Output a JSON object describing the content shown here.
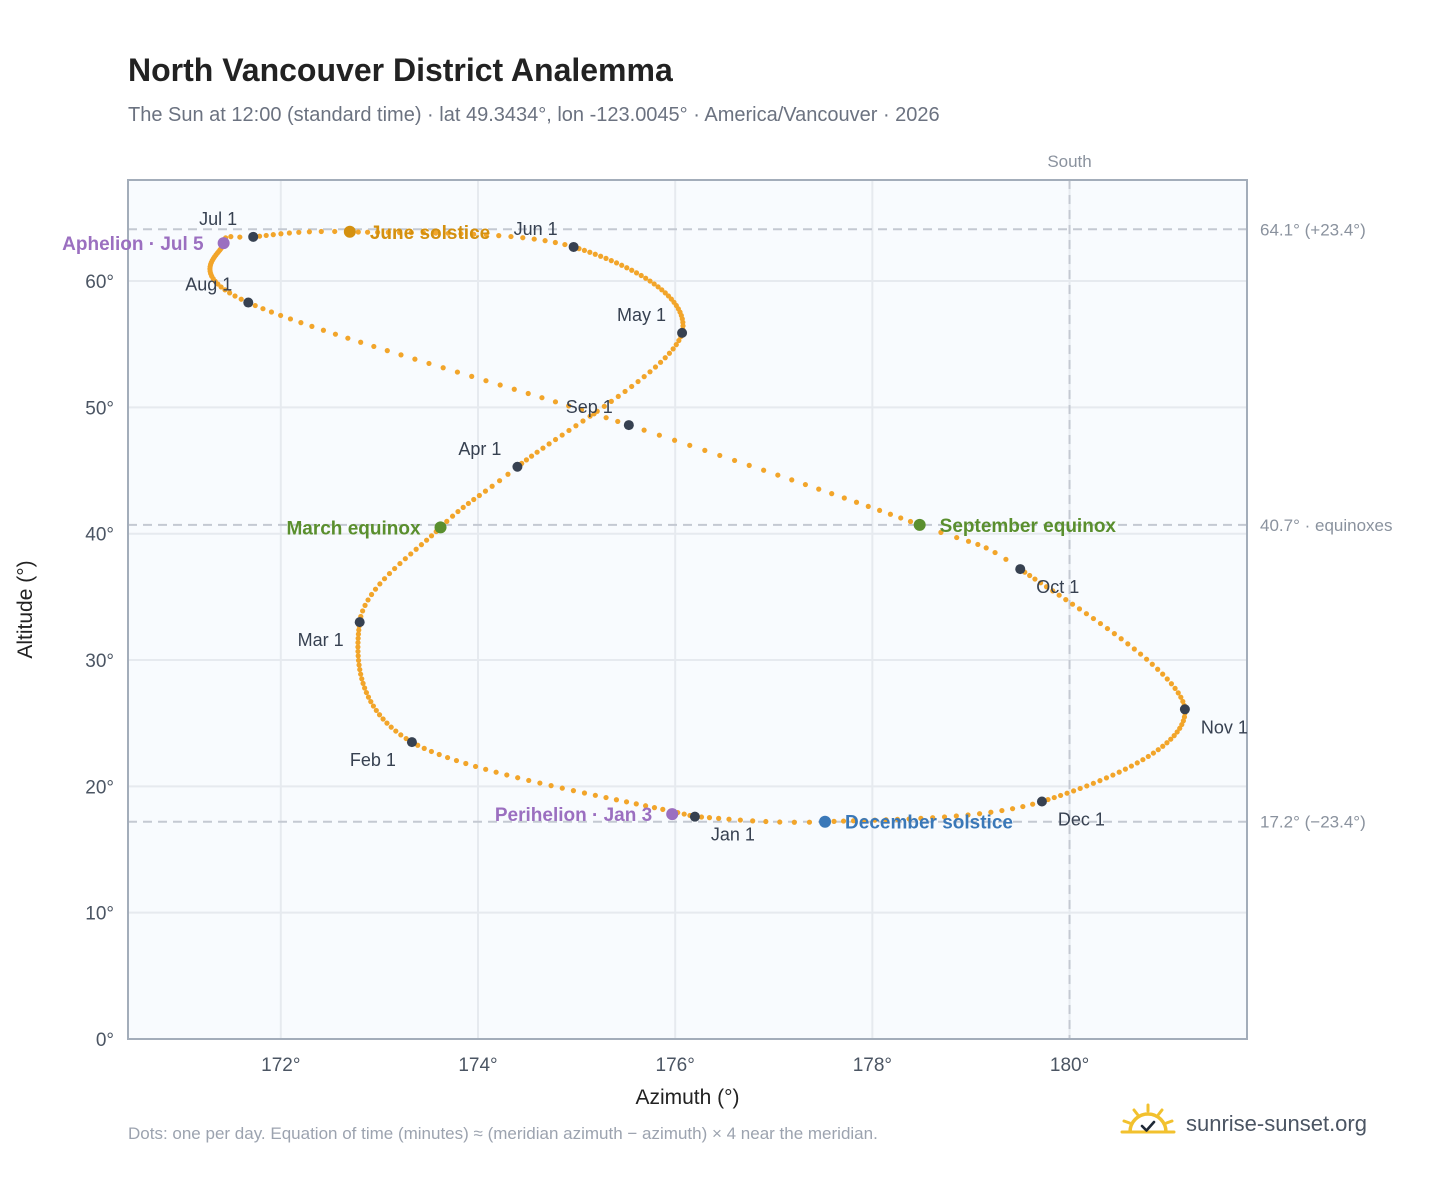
{
  "title": "North Vancouver District Analemma",
  "subtitle": "The Sun at 12:00 (standard time) · lat 49.3434°, lon -123.0045° · America/Vancouver · 2026",
  "footnote": "Dots: one per day. Equation of time (minutes) ≈ (meridian azimuth − azimuth) × 4 near the meridian.",
  "brand": "sunrise-sunset.org",
  "colors": {
    "path": "#f2a52a",
    "month_marker": "#374151",
    "equinox": "#5a8f2e",
    "june_solstice": "#d4900f",
    "december_solstice": "#3a78b8",
    "apsis": "#9b6fc0",
    "grid": "#e6eaef",
    "plot_bg": "#f8fbfe",
    "frame": "#a3adba",
    "reference": "#c4c9d2"
  },
  "chart_data": {
    "type": "scatter",
    "xlabel": "Azimuth (°)",
    "ylabel": "Altitude (°)",
    "xlim": [
      170.45,
      181.8
    ],
    "ylim": [
      0,
      68
    ],
    "x_ticks": [
      172,
      174,
      176,
      178,
      180
    ],
    "x_tick_labels": [
      "172°",
      "174°",
      "176°",
      "178°",
      "180°"
    ],
    "y_ticks": [
      0,
      10,
      20,
      30,
      40,
      50,
      60
    ],
    "y_tick_labels": [
      "0°",
      "10°",
      "20°",
      "30°",
      "40°",
      "50°",
      "60°"
    ],
    "grid": true,
    "meridian": {
      "azimuth": 180,
      "label": "South"
    },
    "reference_lines": [
      {
        "altitude": 64.1,
        "label": "64.1° (+23.4°)"
      },
      {
        "altitude": 40.7,
        "label": "40.7° · equinoxes"
      },
      {
        "altitude": 17.2,
        "label": "17.2° (−23.4°)"
      }
    ],
    "path_keypoints": [
      {
        "day": 0,
        "az": 176.2,
        "alt": 17.6
      },
      {
        "day": 31,
        "az": 173.33,
        "alt": 23.5
      },
      {
        "day": 59,
        "az": 172.8,
        "alt": 33.0
      },
      {
        "day": 78,
        "az": 173.62,
        "alt": 40.5
      },
      {
        "day": 90,
        "az": 174.4,
        "alt": 45.3
      },
      {
        "day": 120,
        "az": 176.07,
        "alt": 55.9
      },
      {
        "day": 151,
        "az": 174.97,
        "alt": 62.7
      },
      {
        "day": 171,
        "az": 172.7,
        "alt": 63.9
      },
      {
        "day": 181,
        "az": 171.72,
        "alt": 63.5
      },
      {
        "day": 185,
        "az": 171.42,
        "alt": 63.0
      },
      {
        "day": 212,
        "az": 171.67,
        "alt": 58.3
      },
      {
        "day": 243,
        "az": 175.53,
        "alt": 48.6
      },
      {
        "day": 265,
        "az": 178.48,
        "alt": 40.7
      },
      {
        "day": 273,
        "az": 179.5,
        "alt": 37.2
      },
      {
        "day": 304,
        "az": 181.17,
        "alt": 26.1
      },
      {
        "day": 334,
        "az": 179.72,
        "alt": 18.8
      },
      {
        "day": 354,
        "az": 177.52,
        "alt": 17.2
      },
      {
        "day": 365,
        "az": 176.2,
        "alt": 17.6
      }
    ],
    "month_markers": [
      {
        "label": "Jan 1",
        "az": 176.2,
        "alt": 17.6,
        "anchor": "below-right"
      },
      {
        "label": "Feb 1",
        "az": 173.33,
        "alt": 23.5,
        "anchor": "below-left"
      },
      {
        "label": "Mar 1",
        "az": 172.8,
        "alt": 33.0,
        "anchor": "below-left"
      },
      {
        "label": "Apr 1",
        "az": 174.4,
        "alt": 45.3,
        "anchor": "above-left"
      },
      {
        "label": "May 1",
        "az": 176.07,
        "alt": 55.9,
        "anchor": "above-left"
      },
      {
        "label": "Jun 1",
        "az": 174.97,
        "alt": 62.7,
        "anchor": "above-left"
      },
      {
        "label": "Jul 1",
        "az": 171.72,
        "alt": 63.5,
        "anchor": "above-left"
      },
      {
        "label": "Aug 1",
        "az": 171.67,
        "alt": 58.3,
        "anchor": "above-left"
      },
      {
        "label": "Sep 1",
        "az": 175.53,
        "alt": 48.6,
        "anchor": "above-left"
      },
      {
        "label": "Oct 1",
        "az": 179.5,
        "alt": 37.2,
        "anchor": "below-right"
      },
      {
        "label": "Nov 1",
        "az": 181.17,
        "alt": 26.1,
        "anchor": "below-right"
      },
      {
        "label": "Dec 1",
        "az": 179.72,
        "alt": 18.8,
        "anchor": "below-right"
      }
    ],
    "events": [
      {
        "label": "March equinox",
        "az": 173.62,
        "alt": 40.5,
        "color_key": "equinox",
        "side": "left"
      },
      {
        "label": "June solstice",
        "az": 172.7,
        "alt": 63.9,
        "color_key": "june_solstice",
        "side": "right"
      },
      {
        "label": "September equinox",
        "az": 178.48,
        "alt": 40.7,
        "color_key": "equinox",
        "side": "right"
      },
      {
        "label": "December solstice",
        "az": 177.52,
        "alt": 17.2,
        "color_key": "december_solstice",
        "side": "right"
      },
      {
        "label": "Perihelion · Jan 3",
        "az": 175.97,
        "alt": 17.8,
        "color_key": "apsis",
        "side": "left"
      },
      {
        "label": "Aphelion · Jul 5",
        "az": 171.42,
        "alt": 63.0,
        "color_key": "apsis",
        "side": "left"
      }
    ]
  }
}
